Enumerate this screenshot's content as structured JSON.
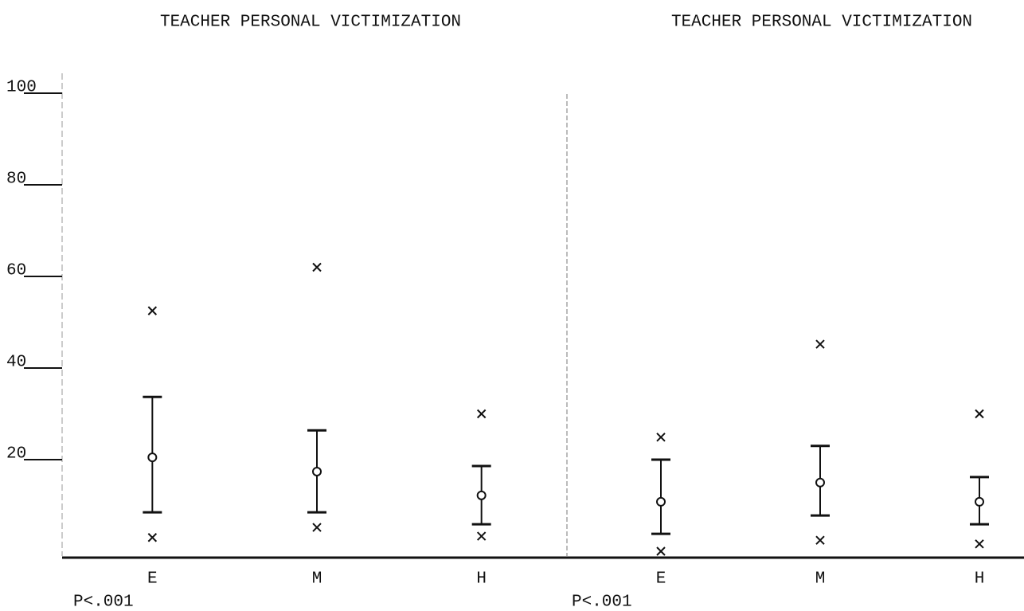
{
  "chart_data": [
    {
      "type": "errorbar",
      "title": "TEACHER PERSONAL VICTIMIZATION",
      "annotation": "P<.001",
      "categories": [
        "E",
        "M",
        "H"
      ],
      "values": [
        20.5,
        17.4,
        12.2
      ],
      "error_low": [
        8.5,
        8.5,
        5.9
      ],
      "error_high": [
        33.7,
        26.4,
        18.6
      ],
      "min": [
        3,
        5.2,
        3.3
      ],
      "max": [
        52.5,
        62,
        30
      ],
      "ylim": [
        0,
        100
      ],
      "yticks": [
        20,
        40,
        60,
        80,
        100
      ],
      "color": "#111111"
    },
    {
      "type": "errorbar",
      "title": "TEACHER PERSONAL VICTIMIZATION",
      "annotation": "P<.001",
      "categories": [
        "E",
        "M",
        "H"
      ],
      "values": [
        10.8,
        15,
        10.8
      ],
      "error_low": [
        3.8,
        7.8,
        5.9
      ],
      "error_high": [
        20,
        23,
        16.2
      ],
      "min": [
        0,
        2.4,
        1.6
      ],
      "max": [
        24.9,
        45.2,
        30
      ],
      "ylim": [
        0,
        100
      ],
      "color": "#111111"
    }
  ]
}
